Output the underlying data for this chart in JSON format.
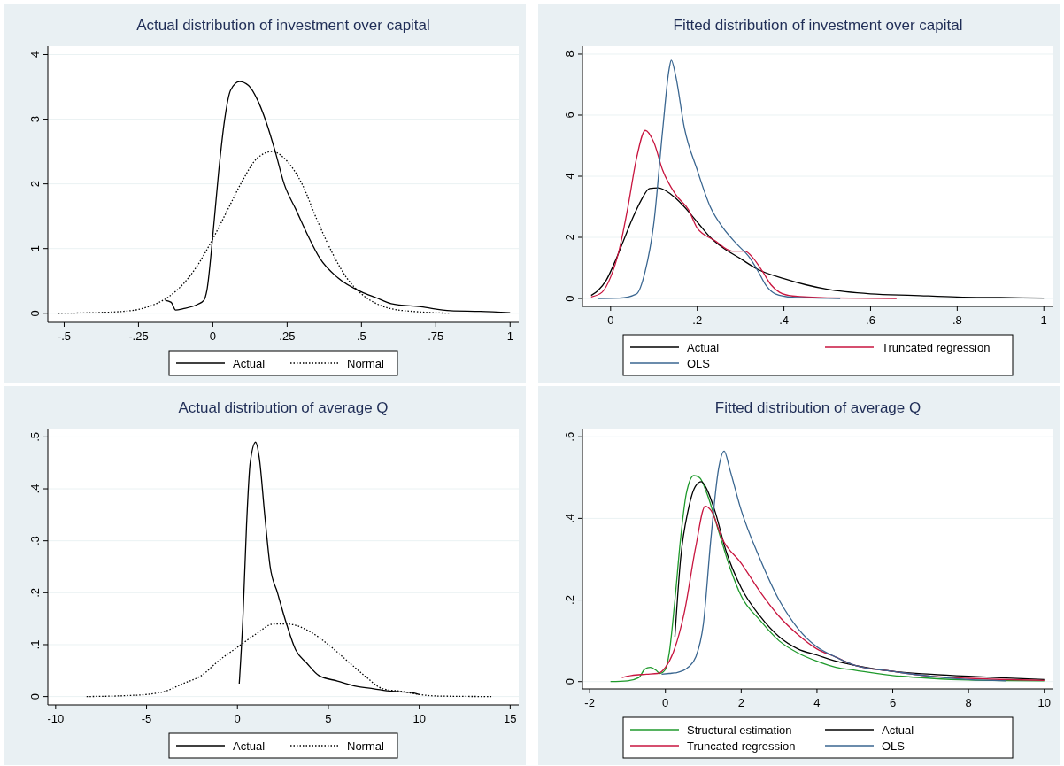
{
  "chart_data": [
    {
      "type": "line",
      "title": "Actual distribution of investment over capital",
      "xlim": [
        -0.555,
        1.029
      ],
      "ylim": [
        -0.14,
        4.13
      ],
      "xticks": [
        {
          "value": -0.5,
          "label": "-.5"
        },
        {
          "value": -0.25,
          "label": "-.25"
        },
        0,
        {
          "value": 0.25,
          "label": ".25"
        },
        {
          "value": 0.5,
          "label": ".5"
        },
        {
          "value": 0.75,
          "label": ".75"
        },
        1
      ],
      "yticks": [
        0,
        1,
        2,
        3,
        4
      ],
      "grid": "y",
      "legend": "bottom",
      "series": [
        {
          "name": "Actual",
          "color": "#000000",
          "line_style": "solid",
          "x": [
            -0.16,
            -0.14,
            -0.125,
            -0.1,
            -0.05,
            -0.03,
            -0.02,
            0,
            0.02,
            0.04,
            0.06,
            0.09,
            0.12,
            0.15,
            0.18,
            0.21,
            0.24,
            0.28,
            0.32,
            0.36,
            0.42,
            0.5,
            0.55,
            0.6,
            0.7,
            0.8,
            0.9,
            1.0
          ],
          "values": [
            0.2,
            0.17,
            0.05,
            0.07,
            0.14,
            0.2,
            0.35,
            1.2,
            2.2,
            3.0,
            3.45,
            3.58,
            3.52,
            3.3,
            2.95,
            2.5,
            2.0,
            1.6,
            1.2,
            0.85,
            0.55,
            0.33,
            0.24,
            0.15,
            0.1,
            0.04,
            0.03,
            0.01
          ]
        },
        {
          "name": "Normal",
          "color": "#000000",
          "line_style": "dotted",
          "x": [
            -0.52,
            -0.4,
            -0.3,
            -0.25,
            -0.2,
            -0.15,
            -0.1,
            -0.05,
            0,
            0.05,
            0.1,
            0.15,
            0.2,
            0.25,
            0.3,
            0.35,
            0.4,
            0.45,
            0.5,
            0.55,
            0.6,
            0.7,
            0.8
          ],
          "values": [
            0,
            0.01,
            0.03,
            0.06,
            0.13,
            0.25,
            0.45,
            0.75,
            1.15,
            1.6,
            2.05,
            2.4,
            2.5,
            2.35,
            2.0,
            1.45,
            0.95,
            0.55,
            0.3,
            0.15,
            0.07,
            0.02,
            0
          ]
        }
      ]
    },
    {
      "type": "line",
      "title": "Fitted distribution of investment over capital",
      "xlim": [
        -0.065,
        1.022
      ],
      "ylim": [
        -0.26,
        8.26
      ],
      "xticks": [
        0,
        {
          "value": 0.2,
          "label": ".2"
        },
        {
          "value": 0.4,
          "label": ".4"
        },
        {
          "value": 0.6,
          "label": ".6"
        },
        {
          "value": 0.8,
          "label": ".8"
        },
        1
      ],
      "yticks": [
        0,
        2,
        4,
        6,
        8
      ],
      "grid": "y",
      "legend": "bottom",
      "series": [
        {
          "name": "Actual",
          "color": "#000000",
          "line_style": "solid",
          "x": [
            -0.045,
            -0.03,
            -0.01,
            0.01,
            0.03,
            0.05,
            0.07,
            0.09,
            0.11,
            0.14,
            0.17,
            0.2,
            0.23,
            0.26,
            0.3,
            0.34,
            0.4,
            0.45,
            0.5,
            0.6,
            0.7,
            0.8,
            0.9,
            1.0
          ],
          "values": [
            0.1,
            0.25,
            0.6,
            1.2,
            1.9,
            2.6,
            3.2,
            3.6,
            3.62,
            3.4,
            3.0,
            2.5,
            2.0,
            1.65,
            1.3,
            0.95,
            0.65,
            0.45,
            0.3,
            0.15,
            0.1,
            0.05,
            0.03,
            0.01
          ]
        },
        {
          "name": "Truncated regression",
          "color": "#c8153f",
          "line_style": "solid",
          "x": [
            -0.045,
            -0.02,
            0,
            0.02,
            0.04,
            0.06,
            0.08,
            0.1,
            0.12,
            0.15,
            0.18,
            0.2,
            0.24,
            0.28,
            0.31,
            0.33,
            0.35,
            0.37,
            0.39,
            0.42,
            0.5,
            0.66
          ],
          "values": [
            0.05,
            0.2,
            0.7,
            1.6,
            3.0,
            4.6,
            5.5,
            5.1,
            4.2,
            3.4,
            2.9,
            2.3,
            1.9,
            1.55,
            1.55,
            1.3,
            0.9,
            0.45,
            0.2,
            0.08,
            0.02,
            0
          ]
        },
        {
          "name": "OLS",
          "color": "#3a6690",
          "line_style": "solid",
          "x": [
            -0.03,
            0.02,
            0.06,
            0.08,
            0.1,
            0.12,
            0.135,
            0.14,
            0.15,
            0.17,
            0.2,
            0.23,
            0.26,
            0.29,
            0.32,
            0.34,
            0.36,
            0.38,
            0.42,
            0.53
          ],
          "values": [
            0,
            0.01,
            0.15,
            0.9,
            2.5,
            5.5,
            7.5,
            7.8,
            7.3,
            5.6,
            4.2,
            3.0,
            2.3,
            1.8,
            1.35,
            0.9,
            0.4,
            0.15,
            0.04,
            0
          ]
        }
      ]
    },
    {
      "type": "line",
      "title": "Actual distribution of average Q",
      "xlim": [
        -10.43,
        15.47
      ],
      "ylim": [
        -0.016,
        0.516
      ],
      "xticks": [
        -10,
        -5,
        0,
        5,
        10,
        15
      ],
      "yticks": [
        0,
        {
          "value": 0.1,
          "label": ".1"
        },
        {
          "value": 0.2,
          "label": ".2"
        },
        {
          "value": 0.3,
          "label": ".3"
        },
        {
          "value": 0.4,
          "label": ".4"
        },
        {
          "value": 0.5,
          "label": ".5"
        }
      ],
      "grid": "y",
      "legend": "bottom",
      "series": [
        {
          "name": "Actual",
          "color": "#000000",
          "line_style": "solid",
          "x": [
            0.1,
            0.3,
            0.5,
            0.7,
            1.0,
            1.2,
            1.5,
            1.8,
            2.2,
            2.7,
            3.2,
            3.8,
            4.5,
            5.5,
            6.5,
            7.5,
            8.5,
            9.5,
            10
          ],
          "values": [
            0.025,
            0.15,
            0.33,
            0.45,
            0.49,
            0.46,
            0.35,
            0.25,
            0.2,
            0.14,
            0.09,
            0.065,
            0.04,
            0.03,
            0.02,
            0.015,
            0.01,
            0.008,
            0.004
          ]
        },
        {
          "name": "Normal",
          "color": "#000000",
          "line_style": "dotted",
          "x": [
            -8.3,
            -6,
            -5,
            -4,
            -3,
            -2,
            -1,
            0,
            1,
            2,
            2.7,
            4,
            5,
            6,
            7,
            8,
            9,
            10,
            11,
            14
          ],
          "values": [
            0,
            0.002,
            0.004,
            0.01,
            0.025,
            0.04,
            0.07,
            0.095,
            0.12,
            0.14,
            0.14,
            0.125,
            0.1,
            0.07,
            0.04,
            0.015,
            0.01,
            0.004,
            0.001,
            0
          ]
        }
      ]
    },
    {
      "type": "line",
      "title": "Fitted distribution of average Q",
      "xlim": [
        -2.19,
        10.24
      ],
      "ylim": [
        -0.018,
        0.62
      ],
      "xticks": [
        -2,
        0,
        2,
        4,
        6,
        8,
        10
      ],
      "yticks": [
        0,
        {
          "value": 0.2,
          "label": ".2"
        },
        {
          "value": 0.4,
          "label": ".4"
        },
        {
          "value": 0.6,
          "label": ".6"
        }
      ],
      "grid": "y",
      "legend": "bottom",
      "series": [
        {
          "name": "Structural estimation",
          "color": "#1f9a2c",
          "line_style": "solid",
          "x": [
            -1.45,
            -1,
            -0.7,
            -0.55,
            -0.4,
            -0.25,
            -0.15,
            0,
            0.1,
            0.25,
            0.4,
            0.55,
            0.75,
            0.9,
            1.1,
            1.4,
            1.7,
            2,
            2.5,
            3,
            3.5,
            4,
            4.5,
            5,
            6,
            7,
            8,
            10
          ],
          "values": [
            0,
            0.002,
            0.01,
            0.03,
            0.035,
            0.028,
            0.02,
            0.03,
            0.07,
            0.2,
            0.35,
            0.46,
            0.505,
            0.5,
            0.46,
            0.37,
            0.28,
            0.21,
            0.15,
            0.1,
            0.07,
            0.05,
            0.035,
            0.028,
            0.015,
            0.008,
            0.004,
            0.002
          ]
        },
        {
          "name": "Actual",
          "color": "#000000",
          "line_style": "solid",
          "x": [
            0.25,
            0.4,
            0.6,
            0.8,
            0.95,
            1.1,
            1.3,
            1.6,
            2,
            2.5,
            3,
            3.5,
            4,
            4.5,
            5,
            6,
            7,
            8,
            9,
            10
          ],
          "values": [
            0.11,
            0.3,
            0.42,
            0.48,
            0.49,
            0.47,
            0.42,
            0.32,
            0.23,
            0.16,
            0.11,
            0.08,
            0.065,
            0.05,
            0.04,
            0.025,
            0.018,
            0.013,
            0.009,
            0.005
          ]
        },
        {
          "name": "Truncated regression",
          "color": "#c8153f",
          "line_style": "solid",
          "x": [
            -1.15,
            -0.9,
            -0.5,
            -0.2,
            0,
            0.2,
            0.5,
            0.8,
            1.05,
            1.2,
            1.5,
            2,
            2.5,
            3,
            3.5,
            4,
            4.5,
            5,
            6,
            7,
            8,
            10
          ],
          "values": [
            0.01,
            0.015,
            0.018,
            0.02,
            0.035,
            0.07,
            0.17,
            0.33,
            0.43,
            0.42,
            0.35,
            0.29,
            0.22,
            0.16,
            0.115,
            0.08,
            0.06,
            0.04,
            0.025,
            0.013,
            0.008,
            0.003
          ]
        },
        {
          "name": "OLS",
          "color": "#3a6690",
          "line_style": "solid",
          "x": [
            -0.1,
            0.1,
            0.3,
            0.6,
            0.8,
            1,
            1.2,
            1.4,
            1.55,
            1.7,
            2,
            2.5,
            3,
            3.5,
            4,
            4.5,
            5,
            6,
            7,
            8,
            9
          ],
          "values": [
            0.018,
            0.02,
            0.022,
            0.035,
            0.06,
            0.14,
            0.35,
            0.52,
            0.565,
            0.52,
            0.42,
            0.3,
            0.2,
            0.13,
            0.085,
            0.06,
            0.04,
            0.025,
            0.013,
            0.005,
            0.002
          ]
        }
      ]
    }
  ]
}
